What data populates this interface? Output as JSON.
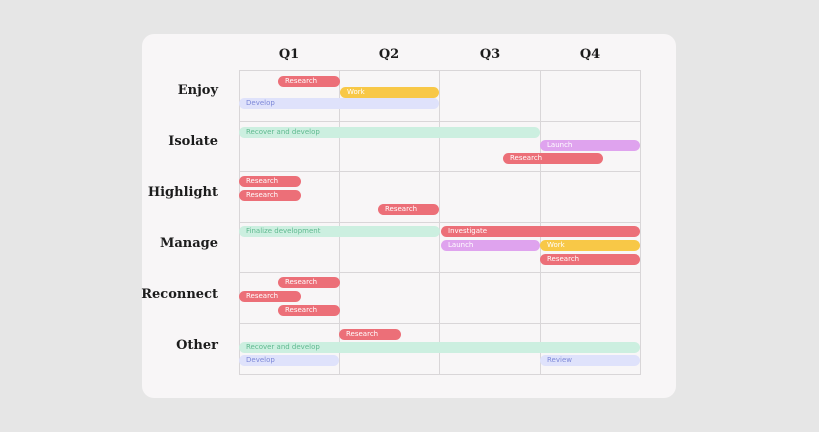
{
  "quarters": [
    "Q1",
    "Q2",
    "Q3",
    "Q4"
  ],
  "rows": [
    {
      "label": "Enjoy",
      "bars": [
        {
          "text": "Research",
          "kind": "research"
        },
        {
          "text": "Work",
          "kind": "work"
        },
        {
          "text": "Develop",
          "kind": "develop"
        }
      ]
    },
    {
      "label": "Isolate",
      "bars": [
        {
          "text": "Recover and develop",
          "kind": "recover"
        },
        {
          "text": "Launch",
          "kind": "launch"
        },
        {
          "text": "Research",
          "kind": "research"
        }
      ]
    },
    {
      "label": "Highlight",
      "bars": [
        {
          "text": "Research",
          "kind": "research"
        },
        {
          "text": "Research",
          "kind": "research"
        },
        {
          "text": "Research",
          "kind": "research"
        }
      ]
    },
    {
      "label": "Manage",
      "bars": [
        {
          "text": "Finalize development",
          "kind": "recover"
        },
        {
          "text": "Investigate",
          "kind": "research"
        },
        {
          "text": "Launch",
          "kind": "launch"
        },
        {
          "text": "Work",
          "kind": "work"
        },
        {
          "text": "Research",
          "kind": "research"
        }
      ]
    },
    {
      "label": "Reconnect",
      "bars": [
        {
          "text": "Research",
          "kind": "research"
        },
        {
          "text": "Research",
          "kind": "research"
        },
        {
          "text": "Research",
          "kind": "research"
        }
      ]
    },
    {
      "label": "Other",
      "bars": [
        {
          "text": "Research",
          "kind": "research"
        },
        {
          "text": "Recover and develop",
          "kind": "recover"
        },
        {
          "text": "Develop",
          "kind": "develop"
        },
        {
          "text": "Review",
          "kind": "review"
        }
      ]
    }
  ],
  "colors": {
    "research": "#ec6f78",
    "work": "#f8c847",
    "develop": "#dfe2fb",
    "recover": "#ccefe0",
    "launch": "#dfa3ee",
    "review": "#dfe2fb"
  }
}
